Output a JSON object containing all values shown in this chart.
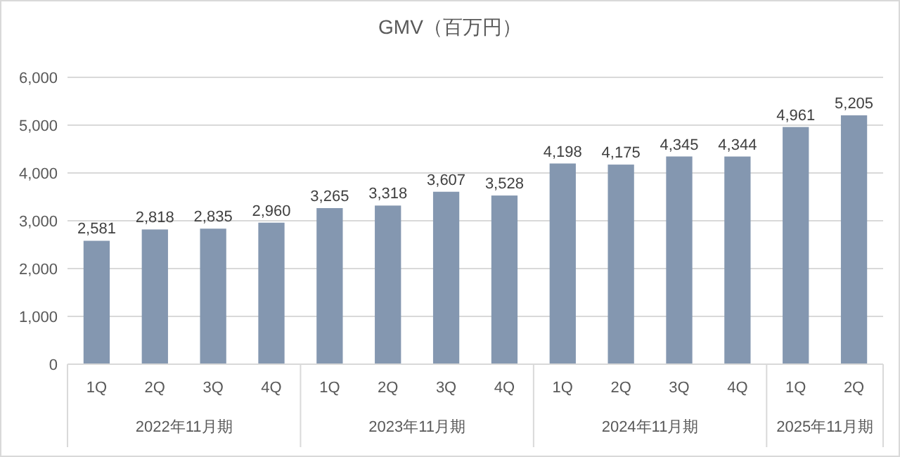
{
  "chart_data": {
    "type": "bar",
    "title": "GMV（百万円）",
    "categories": [
      "1Q",
      "2Q",
      "3Q",
      "4Q",
      "1Q",
      "2Q",
      "3Q",
      "4Q",
      "1Q",
      "2Q",
      "3Q",
      "4Q",
      "1Q",
      "2Q"
    ],
    "values": [
      2581,
      2818,
      2835,
      2960,
      3265,
      3318,
      3607,
      3528,
      4198,
      4175,
      4345,
      4344,
      4961,
      5205
    ],
    "value_labels": [
      "2,581",
      "2,818",
      "2,835",
      "2,960",
      "3,265",
      "3,318",
      "3,607",
      "3,528",
      "4,198",
      "4,175",
      "4,345",
      "4,344",
      "4,961",
      "5,205"
    ],
    "color": "#8497b0",
    "ylim": [
      0,
      6000
    ],
    "yticks": [
      {
        "value": 0,
        "label": "0"
      },
      {
        "value": 1000,
        "label": "1,000"
      },
      {
        "value": 2000,
        "label": "2,000"
      },
      {
        "value": 3000,
        "label": "3,000"
      },
      {
        "value": 4000,
        "label": "4,000"
      },
      {
        "value": 5000,
        "label": "5,000"
      },
      {
        "value": 6000,
        "label": "6,000"
      }
    ],
    "grid": "y",
    "annotations": [
      "2022年11月期",
      "2023年11月期",
      "2024年11月期",
      "2025年11月期"
    ]
  }
}
